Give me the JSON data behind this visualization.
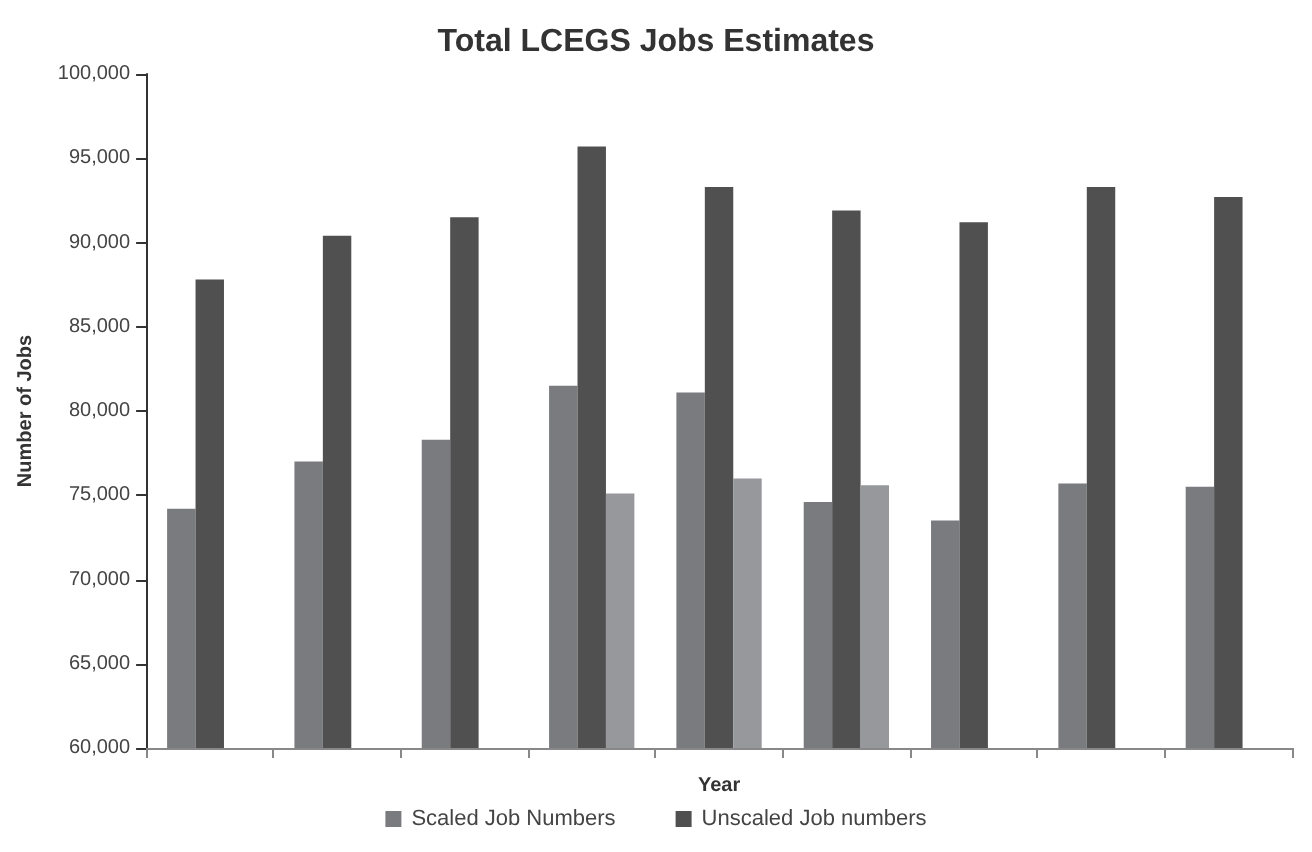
{
  "chart_data": {
    "type": "bar",
    "title": "Total LCEGS Jobs Estimates",
    "xlabel": "Year",
    "ylabel": "Number of Jobs",
    "categories": [
      null,
      null,
      null,
      null,
      null,
      null,
      null,
      null,
      null
    ],
    "series": [
      {
        "name": "Scaled Job Numbers",
        "color": "#7a7b7f",
        "values": [
          74200,
          77000,
          78300,
          81500,
          81100,
          74600,
          73500,
          75700,
          75500
        ]
      },
      {
        "name": "Unscaled Job numbers",
        "color": "#505050",
        "values": [
          87800,
          90400,
          91500,
          95700,
          93300,
          91900,
          91200,
          93300,
          92700
        ]
      },
      {
        "color": "#97989c",
        "values": [
          null,
          null,
          null,
          75100,
          76000,
          75600,
          null,
          null,
          null
        ]
      }
    ],
    "ylim": [
      60000,
      100000
    ],
    "yticks": [
      {
        "value": 60000,
        "label": "60,000"
      },
      {
        "value": 65000,
        "label": "65,000"
      },
      {
        "value": 70000,
        "label": "70,000"
      },
      {
        "value": 75000,
        "label": "75,000"
      },
      {
        "value": 80000,
        "label": "80,000"
      },
      {
        "value": 85000,
        "label": "85,000"
      },
      {
        "value": 90000,
        "label": "90,000"
      },
      {
        "value": 95000,
        "label": "95,000"
      },
      {
        "value": 100000,
        "label": "100,000"
      }
    ],
    "grid": false,
    "legend": "bottom"
  }
}
